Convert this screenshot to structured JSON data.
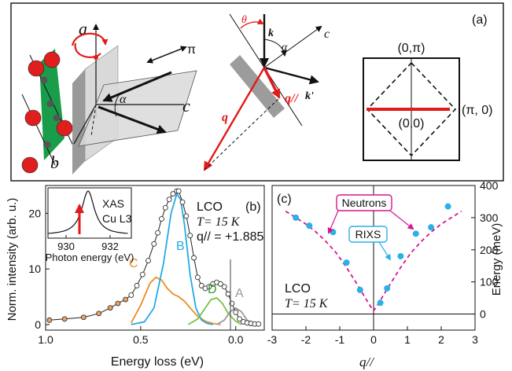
{
  "panel_a": {
    "label": "(a)",
    "axis_a": "a",
    "axis_b": "b",
    "axis_c": "c",
    "alpha": "α",
    "pi": "π",
    "theta": "θ",
    "k": "k",
    "kprime": "k'",
    "q": "q",
    "q_par": "q//",
    "c2": "c",
    "alpha2": "α",
    "bz_top": "(0,π)",
    "bz_right": "(π, 0)",
    "bz_center": "(0,0)"
  },
  "panel_b": {
    "label": "(b)",
    "ylabel": "Norm. intensity (arb. u.)",
    "xlabel": "Energy loss (eV)",
    "info_line1": "LCO",
    "info_line2": "T= 15 K",
    "info_line3": "q// = +1.885",
    "peak_C": "C",
    "peak_B": "B",
    "peak_D": "D",
    "peak_A": "A",
    "inset_xas": "XAS",
    "inset_edge": "Cu L3",
    "inset_xlabel": "Photon energy (eV)",
    "inset_ticks": [
      "930",
      "932"
    ],
    "colors": {
      "C": "#f08a1e",
      "B": "#27a9e1",
      "D": "#7ac143",
      "A": "#9a9a9a",
      "data": "#222222"
    }
  },
  "panel_c": {
    "label": "(c)",
    "ylabel": "Energy (meV)",
    "xlabel": "q//",
    "info_line1": "LCO",
    "info_line2": "T= 15 K",
    "neutrons_label": "Neutrons",
    "rixs_label": "RIXS",
    "colors": {
      "neutrons": "#d6168c",
      "rixs": "#29b1e8"
    }
  },
  "chart_data": [
    {
      "type": "line",
      "panel": "b",
      "title": "",
      "xlabel": "Energy loss (eV)",
      "ylabel": "Norm. intensity (arb. u.)",
      "xlim": [
        1.0,
        -0.15
      ],
      "ylim": [
        -1,
        25
      ],
      "x_ticks": [
        "1.0",
        "0.5",
        "0.0"
      ],
      "y_ticks": [
        "0",
        "10",
        "20"
      ],
      "series": [
        {
          "name": "C",
          "x": [
            0.55,
            0.5,
            0.45,
            0.42,
            0.39,
            0.36,
            0.33,
            0.3,
            0.27,
            0.24,
            0.2,
            0.16,
            0.12,
            0.08
          ],
          "y": [
            0.3,
            3.5,
            7.5,
            8.5,
            8.0,
            6.5,
            5.5,
            5.0,
            4.2,
            3.0,
            1.5,
            0.6,
            0.2,
            0.0
          ]
        },
        {
          "name": "B",
          "x": [
            0.55,
            0.48,
            0.43,
            0.38,
            0.34,
            0.31,
            0.29,
            0.27,
            0.24,
            0.21,
            0.18,
            0.15,
            0.12
          ],
          "y": [
            0.0,
            0.5,
            3.0,
            11.0,
            20.0,
            23.5,
            22.5,
            18.0,
            9.0,
            3.0,
            0.8,
            0.2,
            0.0
          ]
        },
        {
          "name": "D",
          "x": [
            0.25,
            0.2,
            0.16,
            0.13,
            0.1,
            0.07,
            0.04,
            0.0,
            -0.03
          ],
          "y": [
            0.0,
            1.0,
            3.0,
            4.5,
            4.8,
            3.8,
            2.0,
            0.6,
            0.0
          ]
        },
        {
          "name": "A",
          "x": [
            0.1,
            0.06,
            0.03,
            0.0,
            -0.03,
            -0.06,
            -0.1
          ],
          "y": [
            0.0,
            0.8,
            2.3,
            3.0,
            2.3,
            0.8,
            0.0
          ]
        },
        {
          "name": "data",
          "x": [
            0.98,
            0.9,
            0.8,
            0.72,
            0.66,
            0.62,
            0.58,
            0.55,
            0.52,
            0.49,
            0.46,
            0.43,
            0.41,
            0.39,
            0.37,
            0.35,
            0.33,
            0.31,
            0.3,
            0.28,
            0.26,
            0.24,
            0.22,
            0.2,
            0.18,
            0.16,
            0.14,
            0.12,
            0.1,
            0.08,
            0.06,
            0.04,
            0.02,
            0.0,
            -0.02,
            -0.04,
            -0.06,
            -0.08,
            -0.1,
            -0.12
          ],
          "y": [
            0.8,
            1.0,
            1.3,
            2.0,
            3.0,
            3.8,
            4.5,
            5.3,
            7.0,
            9.0,
            11.5,
            14.5,
            16.5,
            19.0,
            21.0,
            22.5,
            23.5,
            24.0,
            24.0,
            22.0,
            19.5,
            16.0,
            12.0,
            8.5,
            7.0,
            6.5,
            6.8,
            7.3,
            7.6,
            7.3,
            6.8,
            5.5,
            3.8,
            2.2,
            1.0,
            0.5,
            0.3,
            0.2,
            0.1,
            0.1
          ]
        }
      ],
      "inset": {
        "type": "line",
        "xlabel": "Photon energy (eV)",
        "x_ticks": [
          "930",
          "932"
        ],
        "peak_x": 931
      }
    },
    {
      "type": "scatter",
      "panel": "c",
      "title": "",
      "xlabel": "q//",
      "ylabel": "Energy (meV)",
      "xlim": [
        -3,
        3
      ],
      "ylim": [
        -50,
        400
      ],
      "x_ticks": [
        "-3",
        "-2",
        "-1",
        "0",
        "1",
        "2",
        "3"
      ],
      "y_ticks": [
        "0",
        "100",
        "200",
        "300",
        "400"
      ],
      "series": [
        {
          "name": "RIXS",
          "x": [
            -2.3,
            -1.9,
            -1.2,
            -0.8,
            -0.4,
            0.2,
            0.4,
            0.8,
            1.25,
            1.7,
            2.2
          ],
          "y": [
            300,
            275,
            255,
            160,
            75,
            35,
            80,
            180,
            250,
            270,
            335
          ]
        },
        {
          "name": "Neutrons",
          "x": [
            -2.6,
            -2.3,
            -2.0,
            -1.7,
            -1.4,
            -1.1,
            -0.8,
            -0.5,
            -0.3,
            -0.1,
            0.0,
            0.1,
            0.3,
            0.5,
            0.8,
            1.1,
            1.4,
            1.7,
            2.0,
            2.3,
            2.6
          ],
          "y": [
            320,
            300,
            280,
            255,
            225,
            190,
            145,
            95,
            60,
            25,
            10,
            25,
            60,
            95,
            145,
            190,
            225,
            255,
            280,
            300,
            320
          ]
        }
      ]
    }
  ]
}
